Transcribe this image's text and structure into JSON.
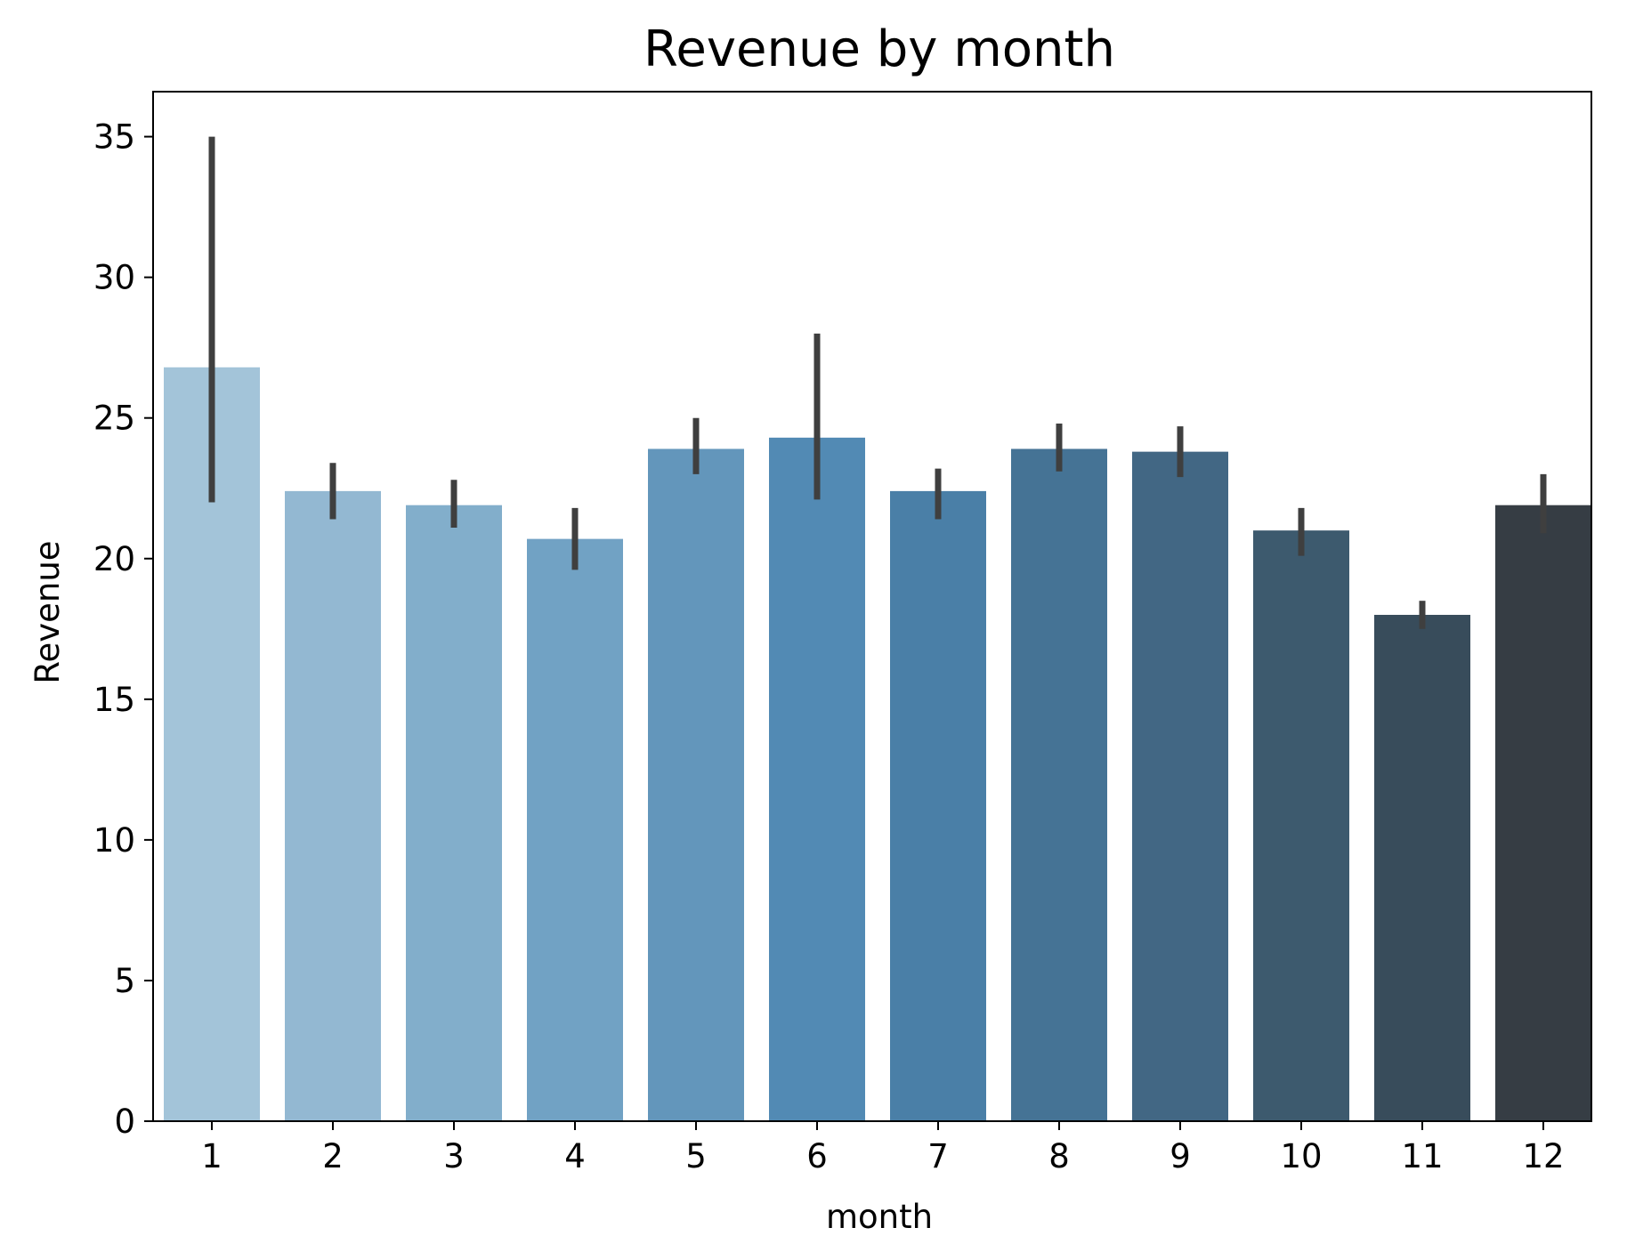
{
  "chart_data": {
    "type": "bar",
    "title": "Revenue by month",
    "xlabel": "month",
    "ylabel": "Revenue",
    "categories": [
      "1",
      "2",
      "3",
      "4",
      "5",
      "6",
      "7",
      "8",
      "9",
      "10",
      "11",
      "12"
    ],
    "values": [
      26.8,
      22.4,
      21.9,
      20.7,
      23.9,
      24.3,
      22.4,
      23.9,
      23.8,
      21.0,
      18.0,
      21.9
    ],
    "error_bars": {
      "low": [
        22.0,
        21.4,
        21.1,
        19.6,
        23.0,
        22.1,
        21.4,
        23.1,
        22.9,
        20.1,
        17.5,
        20.9
      ],
      "high": [
        35.0,
        23.4,
        22.8,
        21.8,
        25.0,
        28.0,
        23.2,
        24.8,
        24.7,
        21.8,
        18.5,
        23.0
      ]
    },
    "ylim": [
      0,
      36.6
    ],
    "yticks": [
      0,
      5,
      10,
      15,
      20,
      25,
      30,
      35
    ],
    "grid": false,
    "legend": "none",
    "colors": [
      "#a3c4d9",
      "#93b8d2",
      "#82aecb",
      "#71a2c4",
      "#6396bb",
      "#528ab4",
      "#4a7fa7",
      "#457395",
      "#426784",
      "#3d5a6e",
      "#384c5b",
      "#363d44"
    ],
    "error_bar_color": "#3f3f3f"
  }
}
